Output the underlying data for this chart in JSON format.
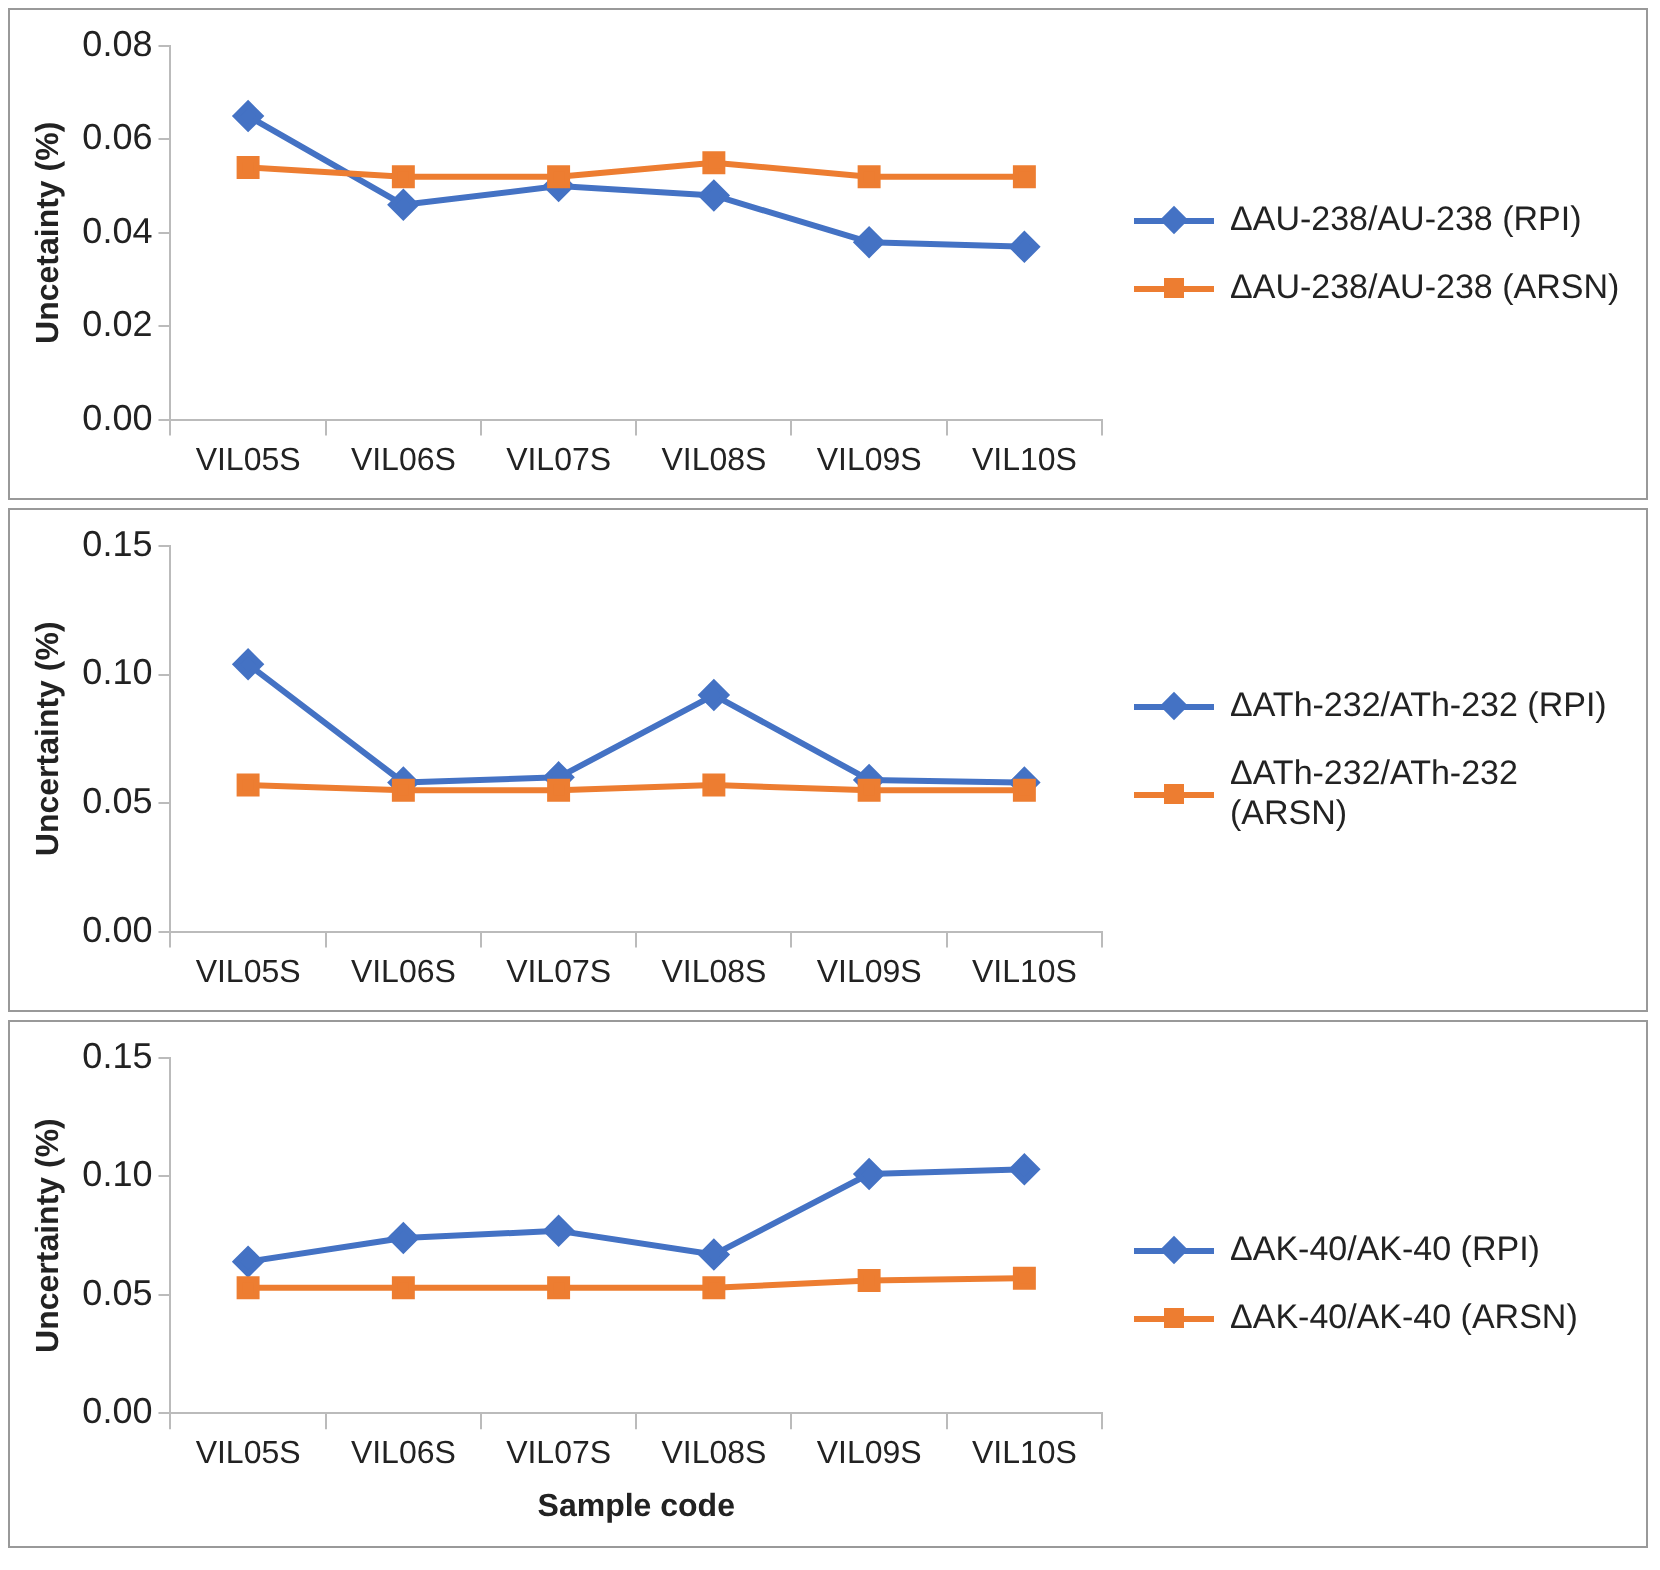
{
  "chart_data": [
    {
      "type": "line",
      "ylabel": "Uncetainty (%)",
      "categories": [
        "VIL05S",
        "VIL06S",
        "VIL07S",
        "VIL08S",
        "VIL09S",
        "VIL10S"
      ],
      "series": [
        {
          "name": "ΔAU-238/AU-238 (RPI)",
          "color": "#4472c4",
          "marker": "diamond",
          "values": [
            0.065,
            0.046,
            0.05,
            0.048,
            0.038,
            0.037
          ]
        },
        {
          "name": "ΔAU-238/AU-238 (ARSN)",
          "color": "#ed7d31",
          "marker": "square",
          "values": [
            0.054,
            0.052,
            0.052,
            0.055,
            0.052,
            0.052
          ]
        }
      ],
      "ylim": [
        0,
        0.08
      ],
      "yticks": [
        {
          "value": 0,
          "label": "0.00"
        },
        {
          "value": 0.02,
          "label": "0.02"
        },
        {
          "value": 0.04,
          "label": "0.04"
        },
        {
          "value": 0.06,
          "label": "0.06"
        },
        {
          "value": 0.08,
          "label": "0.08"
        }
      ],
      "grid": false,
      "legend": "right"
    },
    {
      "type": "line",
      "ylabel": "Uncertainty (%)",
      "categories": [
        "VIL05S",
        "VIL06S",
        "VIL07S",
        "VIL08S",
        "VIL09S",
        "VIL10S"
      ],
      "series": [
        {
          "name": "ΔATh-232/ATh-232 (RPI)",
          "color": "#4472c4",
          "marker": "diamond",
          "values": [
            0.104,
            0.058,
            0.06,
            0.092,
            0.059,
            0.058
          ]
        },
        {
          "name": "ΔATh-232/ATh-232 (ARSN)",
          "color": "#ed7d31",
          "marker": "square",
          "values": [
            0.057,
            0.055,
            0.055,
            0.057,
            0.055,
            0.055
          ]
        }
      ],
      "ylim": [
        0,
        0.15
      ],
      "yticks": [
        {
          "value": 0,
          "label": "0.00"
        },
        {
          "value": 0.05,
          "label": "0.05"
        },
        {
          "value": 0.1,
          "label": "0.10"
        },
        {
          "value": 0.15,
          "label": "0.15"
        }
      ],
      "grid": false,
      "legend": "right"
    },
    {
      "type": "line",
      "ylabel": "Uncertainty (%)",
      "xlabel": "Sample code",
      "categories": [
        "VIL05S",
        "VIL06S",
        "VIL07S",
        "VIL08S",
        "VIL09S",
        "VIL10S"
      ],
      "series": [
        {
          "name": "ΔAK-40/AK-40 (RPI)",
          "color": "#4472c4",
          "marker": "diamond",
          "values": [
            0.064,
            0.074,
            0.077,
            0.067,
            0.101,
            0.103
          ]
        },
        {
          "name": "ΔAK-40/AK-40 (ARSN)",
          "color": "#ed7d31",
          "marker": "square",
          "values": [
            0.053,
            0.053,
            0.053,
            0.053,
            0.056,
            0.057
          ]
        }
      ],
      "ylim": [
        0,
        0.15
      ],
      "yticks": [
        {
          "value": 0,
          "label": "0.00"
        },
        {
          "value": 0.05,
          "label": "0.05"
        },
        {
          "value": 0.1,
          "label": "0.10"
        },
        {
          "value": 0.15,
          "label": "0.15"
        }
      ],
      "grid": false,
      "legend": "right"
    }
  ]
}
